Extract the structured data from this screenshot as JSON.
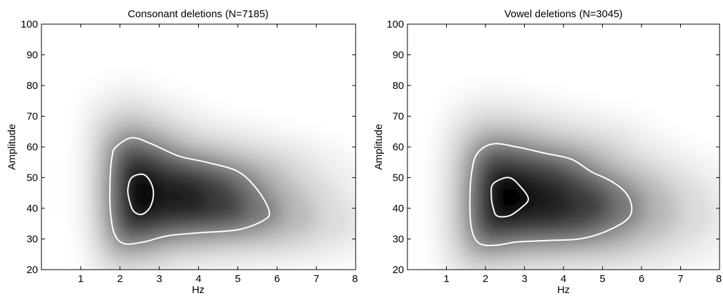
{
  "chart_data": [
    {
      "type": "heatmap",
      "title": "Consonant deletions (N=7185)",
      "xlabel": "Hz",
      "ylabel": "Amplitude",
      "xlim": [
        0,
        8
      ],
      "ylim": [
        20,
        100
      ],
      "xticks": [
        1,
        2,
        3,
        4,
        5,
        6,
        7,
        8
      ],
      "yticks": [
        20,
        30,
        40,
        50,
        60,
        70,
        80,
        90,
        100
      ],
      "colormap": "white-to-black density",
      "density_peak": {
        "x": 2.55,
        "y": 44
      },
      "contours": [
        {
          "level": "inner",
          "color": "#ffffff",
          "points": [
            [
              2.3,
              50
            ],
            [
              2.6,
              51
            ],
            [
              2.8,
              48
            ],
            [
              2.85,
              44
            ],
            [
              2.75,
              40
            ],
            [
              2.55,
              38
            ],
            [
              2.35,
              39
            ],
            [
              2.25,
              42
            ],
            [
              2.2,
              46
            ]
          ]
        },
        {
          "level": "outer",
          "color": "#ffffff",
          "points": [
            [
              1.9,
              60
            ],
            [
              2.3,
              63
            ],
            [
              2.8,
              61
            ],
            [
              3.5,
              57
            ],
            [
              4.2,
              55
            ],
            [
              5.0,
              52
            ],
            [
              5.5,
              46
            ],
            [
              5.8,
              39
            ],
            [
              5.65,
              36
            ],
            [
              5.0,
              33
            ],
            [
              4.0,
              32
            ],
            [
              3.2,
              31
            ],
            [
              2.6,
              29
            ],
            [
              2.1,
              28.5
            ],
            [
              1.85,
              32
            ],
            [
              1.75,
              40
            ],
            [
              1.75,
              50
            ],
            [
              1.8,
              57
            ]
          ]
        }
      ]
    },
    {
      "type": "heatmap",
      "title": "Vowel deletions (N=3045)",
      "xlabel": "Hz",
      "ylabel": "Amplitude",
      "xlim": [
        0,
        8
      ],
      "ylim": [
        20,
        100
      ],
      "xticks": [
        1,
        2,
        3,
        4,
        5,
        6,
        7,
        8
      ],
      "yticks": [
        20,
        30,
        40,
        50,
        60,
        70,
        80,
        90,
        100
      ],
      "colormap": "white-to-black density",
      "density_peak": {
        "x": 2.55,
        "y": 43
      },
      "contours": [
        {
          "level": "inner",
          "color": "#ffffff",
          "points": [
            [
              2.2,
              48
            ],
            [
              2.6,
              50
            ],
            [
              2.9,
              47
            ],
            [
              3.1,
              43
            ],
            [
              2.9,
              40
            ],
            [
              2.6,
              37.5
            ],
            [
              2.3,
              37.5
            ],
            [
              2.2,
              40
            ],
            [
              2.15,
              44
            ]
          ]
        },
        {
          "level": "outer",
          "color": "#ffffff",
          "points": [
            [
              1.8,
              58
            ],
            [
              2.2,
              61
            ],
            [
              2.8,
              60
            ],
            [
              3.5,
              58
            ],
            [
              4.2,
              56
            ],
            [
              4.7,
              52
            ],
            [
              5.2,
              49
            ],
            [
              5.6,
              45
            ],
            [
              5.75,
              40
            ],
            [
              5.6,
              36
            ],
            [
              5.0,
              32
            ],
            [
              4.4,
              30
            ],
            [
              3.6,
              29.5
            ],
            [
              2.8,
              29
            ],
            [
              2.3,
              28
            ],
            [
              1.85,
              28.5
            ],
            [
              1.65,
              33
            ],
            [
              1.6,
              42
            ],
            [
              1.65,
              52
            ]
          ]
        }
      ]
    }
  ]
}
